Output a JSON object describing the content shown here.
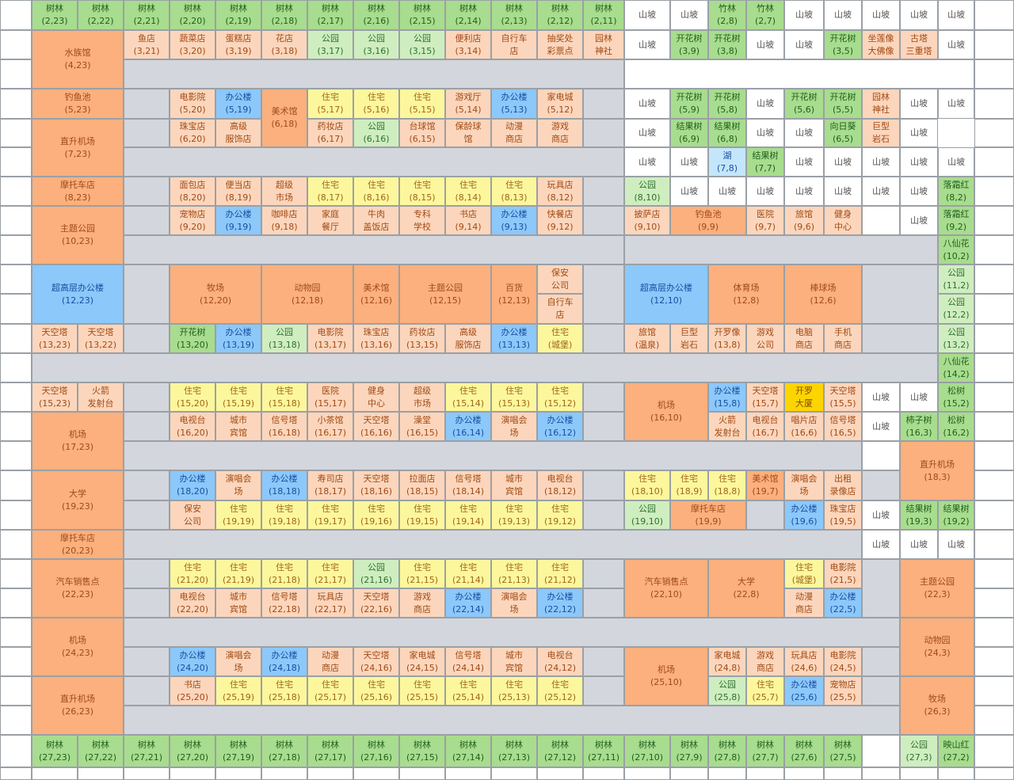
{
  "palette": {
    "gray": "#d3d6dc",
    "white": "#ffffff",
    "green": "#a8dc8e",
    "lgreen": "#cfeec0",
    "orange": "#fbb07d",
    "porange": "#fcd6bc",
    "yellow": "#fcf79c",
    "blue": "#8cc8fa",
    "lblue": "#c4e6fb",
    "gold": "#fcd500"
  },
  "row1": [
    [
      "树林\n(2,23)",
      "green"
    ],
    [
      "树林\n(2,22)",
      "green"
    ],
    [
      "树林\n(2,21)",
      "green"
    ],
    [
      "树林\n(2,20)",
      "green"
    ],
    [
      "树林\n(2,19)",
      "green"
    ],
    [
      "树林\n(2,18)",
      "green"
    ],
    [
      "树林\n(2,17)",
      "green"
    ],
    [
      "树林\n(2,16)",
      "green"
    ],
    [
      "树林\n(2,15)",
      "green"
    ],
    [
      "树林\n(2,14)",
      "green"
    ],
    [
      "树林\n(2,13)",
      "green"
    ],
    [
      "树林\n(2,12)",
      "green"
    ],
    [
      "树林\n(2,11)",
      "green"
    ],
    [
      "山坡",
      "white"
    ],
    [
      "山坡",
      "white"
    ],
    [
      "竹林\n(2,8)",
      "green"
    ],
    [
      "竹林\n(2,7)",
      "green"
    ],
    [
      "山坡",
      "white"
    ],
    [
      "山坡",
      "white"
    ],
    [
      "山坡",
      "white"
    ],
    [
      "山坡",
      "white"
    ],
    [
      "山坡",
      "white"
    ]
  ],
  "row2": [
    [
      "鱼店\n(3,21)",
      "porange"
    ],
    [
      "蔬菜店\n(3,20)",
      "porange"
    ],
    [
      "蛋糕店\n(3,19)",
      "porange"
    ],
    [
      "花店\n(3,18)",
      "porange"
    ],
    [
      "公园\n(3,17)",
      "lgreen"
    ],
    [
      "公园\n(3,16)",
      "lgreen"
    ],
    [
      "公园\n(3,15)",
      "lgreen"
    ],
    [
      "便利店\n(3,14)",
      "porange"
    ],
    [
      "自行车\n店",
      "porange"
    ],
    [
      "抽奖处\n彩票点",
      "porange"
    ],
    [
      "园林\n神社",
      "porange"
    ],
    [
      "山坡",
      "white"
    ],
    [
      "开花树\n(3,9)",
      "green"
    ],
    [
      "开花树\n(3,8)",
      "green"
    ],
    [
      "山坡",
      "white"
    ],
    [
      "山坡",
      "white"
    ],
    [
      "开花树\n(3,5)",
      "green"
    ],
    [
      "坐莲像\n大佛像",
      "porange"
    ],
    [
      "古塔\n三重塔",
      "porange"
    ],
    [
      "山坡",
      "white"
    ]
  ],
  "row4": [
    [
      "电影院\n(5,20)",
      "porange"
    ],
    [
      "办公楼\n(5,19)",
      "blue"
    ],
    [
      "住宅\n(5,17)",
      "yellow"
    ],
    [
      "住宅\n(5,16)",
      "yellow"
    ],
    [
      "住宅\n(5,15)",
      "yellow"
    ],
    [
      "游戏厅\n(5,14)",
      "porange"
    ],
    [
      "办公楼\n(5,13)",
      "blue"
    ],
    [
      "家电城\n(5,12)",
      "porange"
    ],
    [
      "山坡",
      "white"
    ],
    [
      "开花树\n(5,9)",
      "green"
    ],
    [
      "开花树\n(5,8)",
      "green"
    ],
    [
      "山坡",
      "white"
    ],
    [
      "开花树\n(5,6)",
      "green"
    ],
    [
      "开花树\n(5,5)",
      "green"
    ],
    [
      "园林\n神社",
      "porange"
    ],
    [
      "山坡",
      "white"
    ]
  ],
  "row5": [
    [
      "珠宝店\n(6,20)",
      "porange"
    ],
    [
      "高级\n服饰店",
      "porange"
    ],
    [
      "药妆店\n(6,17)",
      "porange"
    ],
    [
      "公园\n(6,16)",
      "lgreen"
    ],
    [
      "台球馆\n(6,15)",
      "porange"
    ],
    [
      "保龄球\n馆",
      "porange"
    ],
    [
      "动漫\n商店",
      "porange"
    ],
    [
      "游戏\n商店",
      "porange"
    ],
    [
      "山坡",
      "white"
    ],
    [
      "结果树\n(6,9)",
      "green"
    ],
    [
      "结果树\n(6,8)",
      "green"
    ],
    [
      "山坡",
      "white"
    ],
    [
      "山坡",
      "white"
    ],
    [
      "向日葵\n(6,5)",
      "green"
    ],
    [
      "巨型\n岩石",
      "porange"
    ],
    [
      "山坡",
      "white"
    ]
  ],
  "row6": [
    [
      "山坡",
      "white"
    ],
    [
      "山坡",
      "white"
    ],
    [
      "湖\n(7,8)",
      "lblue"
    ],
    [
      "结果树\n(7,7)",
      "green"
    ],
    [
      "山坡",
      "white"
    ],
    [
      "山坡",
      "white"
    ],
    [
      "山坡",
      "white"
    ],
    [
      "山坡",
      "white"
    ],
    [
      "山坡",
      "white"
    ]
  ],
  "row7": [
    [
      "面包店\n(8,20)",
      "porange"
    ],
    [
      "便当店\n(8,19)",
      "porange"
    ],
    [
      "超级\n市场",
      "porange"
    ],
    [
      "住宅\n(8,17)",
      "yellow"
    ],
    [
      "住宅\n(8,16)",
      "yellow"
    ],
    [
      "住宅\n(8,15)",
      "yellow"
    ],
    [
      "住宅\n(8,14)",
      "yellow"
    ],
    [
      "住宅\n(8,13)",
      "yellow"
    ],
    [
      "玩具店\n(8,12)",
      "porange"
    ],
    [
      "公园\n(8,10)",
      "lgreen"
    ],
    [
      "山坡",
      "white"
    ],
    [
      "山坡",
      "white"
    ],
    [
      "山坡",
      "white"
    ],
    [
      "山坡",
      "white"
    ],
    [
      "山坡",
      "white"
    ],
    [
      "山坡",
      "white"
    ],
    [
      "山坡",
      "white"
    ],
    [
      "落霜红\n(8,2)",
      "green"
    ]
  ],
  "row8": [
    [
      "宠物店\n(9,20)",
      "porange"
    ],
    [
      "办公楼\n(9,19)",
      "blue"
    ],
    [
      "咖啡店\n(9,18)",
      "porange"
    ],
    [
      "家庭\n餐厅",
      "porange"
    ],
    [
      "牛肉\n盖饭店",
      "porange"
    ],
    [
      "专科\n学校",
      "porange"
    ],
    [
      "书店\n(9,14)",
      "porange"
    ],
    [
      "办公楼\n(9,13)",
      "blue"
    ],
    [
      "快餐店\n(9,12)",
      "porange"
    ],
    [
      "披萨店\n(9,10)",
      "porange"
    ],
    [
      "医院\n(9,7)",
      "porange"
    ],
    [
      "旅馆\n(9,6)",
      "porange"
    ],
    [
      "健身\n中心",
      "porange"
    ],
    [
      "山坡",
      "white"
    ],
    [
      "落霜红\n(9,2)",
      "green"
    ]
  ],
  "big": [
    [
      "水族馆\n(4,23)",
      "orange"
    ],
    [
      "钓鱼池\n(5,23)",
      "orange"
    ],
    [
      "美术馆\n(6,18)",
      "orange"
    ],
    [
      "直升机场\n(7,23)",
      "orange"
    ],
    [
      "摩托车店\n(8,23)",
      "orange"
    ],
    [
      "主题公园\n(10,23)",
      "orange"
    ],
    [
      "钓鱼池\n(9,9)",
      "orange"
    ],
    [
      "八仙花\n(10,2)",
      "green"
    ]
  ],
  "mid": [
    [
      "超高层办公楼\n(12,23)",
      "blue"
    ],
    [
      "牧场\n(12,20)",
      "orange"
    ],
    [
      "动物园\n(12,18)",
      "orange"
    ],
    [
      "美术馆\n(12,16)",
      "orange"
    ],
    [
      "主题公园\n(12,15)",
      "orange"
    ],
    [
      "百货\n(12,13)",
      "orange"
    ],
    [
      "保安\n公司",
      "porange"
    ],
    [
      "自行车\n店",
      "porange"
    ],
    [
      "超高层办公楼\n(12,10)",
      "blue"
    ],
    [
      "体育场\n(12,8)",
      "orange"
    ],
    [
      "棒球场\n(12,6)",
      "orange"
    ],
    [
      "公园\n(11,2)",
      "lgreen"
    ],
    [
      "公园\n(12,2)",
      "lgreen"
    ]
  ],
  "row13": [
    [
      "天空塔\n(13,23)",
      "porange"
    ],
    [
      "天空塔\n(13,22)",
      "porange"
    ],
    [
      "开花树\n(13,20)",
      "green"
    ],
    [
      "办公楼\n(13,19)",
      "blue"
    ],
    [
      "公园\n(13,18)",
      "lgreen"
    ],
    [
      "电影院\n(13,17)",
      "porange"
    ],
    [
      "珠宝店\n(13,16)",
      "porange"
    ],
    [
      "药妆店\n(13,15)",
      "porange"
    ],
    [
      "高级\n服饰店",
      "porange"
    ],
    [
      "办公楼\n(13,13)",
      "blue"
    ],
    [
      "住宅\n(城堡)",
      "yellow"
    ],
    [
      "旅馆\n(温泉)",
      "porange"
    ],
    [
      "巨型\n岩石",
      "porange"
    ],
    [
      "开罗像\n(13,8)",
      "porange"
    ],
    [
      "游戏\n公司",
      "porange"
    ],
    [
      "电脑\n商店",
      "porange"
    ],
    [
      "手机\n商店",
      "porange"
    ],
    [
      "公园\n(13,2)",
      "lgreen"
    ]
  ],
  "row14": [
    [
      "八仙花\n(14,2)",
      "green"
    ]
  ],
  "row15": [
    [
      "天空塔\n(15,23)",
      "porange"
    ],
    [
      "火箭\n发射台",
      "porange"
    ],
    [
      "住宅\n(15,20)",
      "yellow"
    ],
    [
      "住宅\n(15,19)",
      "yellow"
    ],
    [
      "住宅\n(15,18)",
      "yellow"
    ],
    [
      "医院\n(15,17)",
      "porange"
    ],
    [
      "健身\n中心",
      "porange"
    ],
    [
      "超级\n市场",
      "porange"
    ],
    [
      "住宅\n(15,14)",
      "yellow"
    ],
    [
      "住宅\n(15,13)",
      "yellow"
    ],
    [
      "住宅\n(15,12)",
      "yellow"
    ],
    [
      "办公楼\n(15,8)",
      "blue"
    ],
    [
      "天空塔\n(15,7)",
      "porange"
    ],
    [
      "开罗\n大厦",
      "gold"
    ],
    [
      "天空塔\n(15,5)",
      "porange"
    ],
    [
      "山坡",
      "white"
    ],
    [
      "山坡",
      "white"
    ],
    [
      "松树\n(15,2)",
      "green"
    ]
  ],
  "row16": [
    [
      "电视台\n(16,20)",
      "porange"
    ],
    [
      "城市\n宾馆",
      "porange"
    ],
    [
      "信号塔\n(16,18)",
      "porange"
    ],
    [
      "小茶馆\n(16,17)",
      "porange"
    ],
    [
      "天空塔\n(16,16)",
      "porange"
    ],
    [
      "澡堂\n(16,15)",
      "porange"
    ],
    [
      "办公楼\n(16,14)",
      "blue"
    ],
    [
      "演唱会\n场",
      "porange"
    ],
    [
      "办公楼\n(16,12)",
      "blue"
    ],
    [
      "火箭\n发射台",
      "porange"
    ],
    [
      "电视台\n(16,7)",
      "porange"
    ],
    [
      "唱片店\n(16,6)",
      "porange"
    ],
    [
      "信号塔\n(16,5)",
      "porange"
    ],
    [
      "山坡",
      "white"
    ],
    [
      "柿子树\n(16,3)",
      "green"
    ],
    [
      "松树\n(16,2)",
      "green"
    ]
  ],
  "row18": [
    [
      "办公楼\n(18,20)",
      "blue"
    ],
    [
      "演唱会\n场",
      "porange"
    ],
    [
      "办公楼\n(18,18)",
      "blue"
    ],
    [
      "寿司店\n(18,17)",
      "porange"
    ],
    [
      "天空塔\n(18,16)",
      "porange"
    ],
    [
      "拉面店\n(18,15)",
      "porange"
    ],
    [
      "信号塔\n(18,14)",
      "porange"
    ],
    [
      "城市\n宾馆",
      "porange"
    ],
    [
      "电视台\n(18,12)",
      "porange"
    ],
    [
      "住宅\n(18,10)",
      "yellow"
    ],
    [
      "住宅\n(18,9)",
      "yellow"
    ],
    [
      "住宅\n(18,8)",
      "yellow"
    ],
    [
      "美术馆\n(19,7)",
      "orange"
    ],
    [
      "演唱会\n场",
      "porange"
    ],
    [
      "出租\n录像店",
      "porange"
    ]
  ],
  "row19": [
    [
      "保安\n公司",
      "porange"
    ],
    [
      "住宅\n(19,19)",
      "yellow"
    ],
    [
      "住宅\n(19,18)",
      "yellow"
    ],
    [
      "住宅\n(19,17)",
      "yellow"
    ],
    [
      "住宅\n(19,16)",
      "yellow"
    ],
    [
      "住宅\n(19,15)",
      "yellow"
    ],
    [
      "住宅\n(19,14)",
      "yellow"
    ],
    [
      "住宅\n(19,13)",
      "yellow"
    ],
    [
      "住宅\n(19,12)",
      "yellow"
    ],
    [
      "公园\n(19,10)",
      "lgreen"
    ],
    [
      "摩托车店\n(19,9)",
      "orange"
    ],
    [
      "办公楼\n(19,6)",
      "blue"
    ],
    [
      "珠宝店\n(19,5)",
      "porange"
    ],
    [
      "山坡",
      "white"
    ],
    [
      "结果树\n(19,3)",
      "green"
    ],
    [
      "结果树\n(19,2)",
      "green"
    ]
  ],
  "row20": [
    [
      "摩托车店\n(20,23)",
      "orange"
    ],
    [
      "山坡",
      "white"
    ],
    [
      "山坡",
      "white"
    ],
    [
      "山坡",
      "white"
    ]
  ],
  "row21": [
    [
      "住宅\n(21,20)",
      "yellow"
    ],
    [
      "住宅\n(21,19)",
      "yellow"
    ],
    [
      "住宅\n(21,18)",
      "yellow"
    ],
    [
      "住宅\n(21,17)",
      "yellow"
    ],
    [
      "公园\n(21,16)",
      "lgreen"
    ],
    [
      "住宅\n(21,15)",
      "yellow"
    ],
    [
      "住宅\n(21,14)",
      "yellow"
    ],
    [
      "住宅\n(21,13)",
      "yellow"
    ],
    [
      "住宅\n(21,12)",
      "yellow"
    ],
    [
      "住宅\n(城堡)",
      "yellow"
    ],
    [
      "电影院\n(21,5)",
      "porange"
    ]
  ],
  "row22": [
    [
      "电视台\n(22,20)",
      "porange"
    ],
    [
      "城市\n宾馆",
      "porange"
    ],
    [
      "信号塔\n(22,18)",
      "porange"
    ],
    [
      "玩具店\n(22,17)",
      "porange"
    ],
    [
      "天空塔\n(22,16)",
      "porange"
    ],
    [
      "游戏\n商店",
      "porange"
    ],
    [
      "办公楼\n(22,14)",
      "blue"
    ],
    [
      "演唱会\n场",
      "porange"
    ],
    [
      "办公楼\n(22,12)",
      "blue"
    ],
    [
      "动漫\n商店",
      "porange"
    ],
    [
      "办公楼\n(22,5)",
      "blue"
    ]
  ],
  "row24": [
    [
      "办公楼\n(24,20)",
      "blue"
    ],
    [
      "演唱会\n场",
      "porange"
    ],
    [
      "办公楼\n(24,18)",
      "blue"
    ],
    [
      "动漫\n商店",
      "porange"
    ],
    [
      "天空塔\n(24,16)",
      "porange"
    ],
    [
      "家电城\n(24,15)",
      "porange"
    ],
    [
      "信号塔\n(24,14)",
      "porange"
    ],
    [
      "城市\n宾馆",
      "porange"
    ],
    [
      "电视台\n(24,12)",
      "porange"
    ],
    [
      "家电城\n(24,8)",
      "porange"
    ],
    [
      "游戏\n商店",
      "porange"
    ],
    [
      "玩具店\n(24,6)",
      "porange"
    ],
    [
      "电影院\n(24,5)",
      "porange"
    ]
  ],
  "row25": [
    [
      "书店\n(25,20)",
      "porange"
    ],
    [
      "住宅\n(25,19)",
      "yellow"
    ],
    [
      "住宅\n(25,18)",
      "yellow"
    ],
    [
      "住宅\n(25,17)",
      "yellow"
    ],
    [
      "住宅\n(25,16)",
      "yellow"
    ],
    [
      "住宅\n(25,15)",
      "yellow"
    ],
    [
      "住宅\n(25,14)",
      "yellow"
    ],
    [
      "住宅\n(25,13)",
      "yellow"
    ],
    [
      "住宅\n(25,12)",
      "yellow"
    ],
    [
      "公园\n(25,8)",
      "lgreen"
    ],
    [
      "住宅\n(25,7)",
      "yellow"
    ],
    [
      "办公楼\n(25,6)",
      "blue"
    ],
    [
      "宠物店\n(25,5)",
      "porange"
    ]
  ],
  "bigbottom": [
    [
      "大学\n(19,23)",
      "orange"
    ],
    [
      "汽车销售点\n(22,23)",
      "orange"
    ],
    [
      "机场\n(24,23)",
      "orange"
    ],
    [
      "直升机场\n(26,23)",
      "orange"
    ],
    [
      "机场\n(17,23)",
      "orange"
    ],
    [
      "机场\n(16,10)",
      "orange"
    ],
    [
      "直升机场\n(18,3)",
      "orange"
    ],
    [
      "汽车销售点\n(22,10)",
      "orange"
    ],
    [
      "大学\n(22,8)",
      "orange"
    ],
    [
      "主题公园\n(22,3)",
      "orange"
    ],
    [
      "动物园\n(24,3)",
      "orange"
    ],
    [
      "机场\n(25,10)",
      "orange"
    ],
    [
      "牧场\n(26,3)",
      "orange"
    ]
  ],
  "row27": [
    [
      "树林\n(27,23)",
      "green"
    ],
    [
      "树林\n(27,22)",
      "green"
    ],
    [
      "树林\n(27,21)",
      "green"
    ],
    [
      "树林\n(27,20)",
      "green"
    ],
    [
      "树林\n(27,19)",
      "green"
    ],
    [
      "树林\n(27,18)",
      "green"
    ],
    [
      "树林\n(27,17)",
      "green"
    ],
    [
      "树林\n(27,16)",
      "green"
    ],
    [
      "树林\n(27,15)",
      "green"
    ],
    [
      "树林\n(27,14)",
      "green"
    ],
    [
      "树林\n(27,13)",
      "green"
    ],
    [
      "树林\n(27,12)",
      "green"
    ],
    [
      "树林\n(27,11)",
      "green"
    ],
    [
      "树林\n(27,10)",
      "green"
    ],
    [
      "树林\n(27,9)",
      "green"
    ],
    [
      "树林\n(27,8)",
      "green"
    ],
    [
      "树林\n(27,7)",
      "green"
    ],
    [
      "树林\n(27,6)",
      "green"
    ],
    [
      "树林\n(27,5)",
      "green"
    ],
    [
      "公园\n(27,3)",
      "lgreen"
    ],
    [
      "映山红\n(27,2)",
      "green"
    ]
  ]
}
